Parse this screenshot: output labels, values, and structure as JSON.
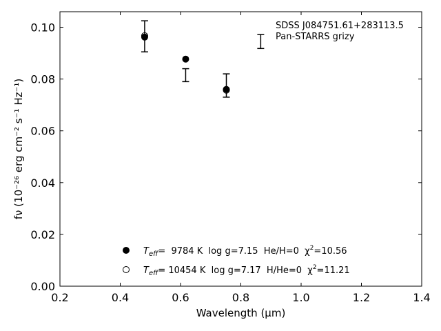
{
  "chart_data": {
    "type": "scatter",
    "title": "",
    "annotation": [
      "SDSS J084751.61+283113.5",
      "Pan-STARRS grizy"
    ],
    "xlabel": "Wavelength (μm)",
    "ylabel": "fν (10⁻²⁶ erg cm⁻² s⁻¹ Hz⁻¹)",
    "xlim": [
      0.2,
      1.4
    ],
    "ylim": [
      0.0,
      0.106
    ],
    "xticks": [
      "0.2",
      "0.4",
      "0.6",
      "0.8",
      "1.0",
      "1.2",
      "1.4"
    ],
    "yticks": [
      "0.00",
      "0.02",
      "0.04",
      "0.06",
      "0.08",
      "0.10"
    ],
    "grid": false,
    "legend_position": "lower-center",
    "observed": {
      "x": [
        0.481,
        0.617,
        0.752,
        0.866
      ],
      "y": [
        0.0965,
        0.0815,
        0.0775,
        0.0945
      ],
      "yerr": [
        0.006,
        0.0025,
        0.0045,
        0.0027
      ]
    },
    "series": [
      {
        "name": "Teff=  9784 K  log g=7.15  He/H=0  χ²=10.56",
        "marker": "filled",
        "x": [
          0.481,
          0.617,
          0.752
        ],
        "y": [
          0.0962,
          0.0877,
          0.076
        ]
      },
      {
        "name": "Teff= 10454 K  log g=7.17  H/He=0  χ²=11.21",
        "marker": "open",
        "x": [
          0.481,
          0.752
        ],
        "y": [
          0.0967,
          0.0757
        ]
      }
    ],
    "legend": [
      {
        "pre": "T",
        "sub": "eff",
        "mid": "=  9784 K  log g=7.15  He/H=0  χ",
        "sup": "2",
        "post": "=10.56"
      },
      {
        "pre": "T",
        "sub": "eff",
        "mid": "= 10454 K  log g=7.17  H/He=0  χ",
        "sup": "2",
        "post": "=11.21"
      }
    ]
  }
}
